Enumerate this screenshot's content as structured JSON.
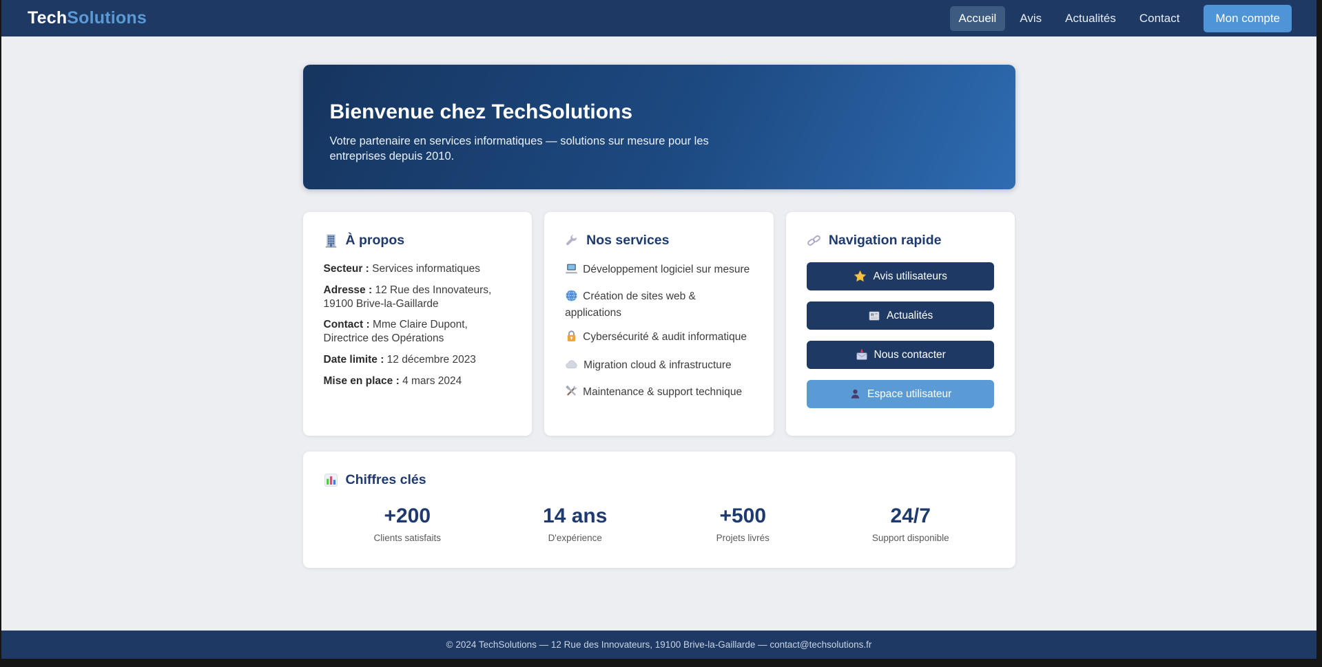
{
  "nav": {
    "brand": {
      "bold": "Tech",
      "accent": "Solutions"
    },
    "items": [
      {
        "label": "Accueil",
        "active": true
      },
      {
        "label": "Avis",
        "active": false
      },
      {
        "label": "Actualités",
        "active": false
      },
      {
        "label": "Contact",
        "active": false
      }
    ],
    "account_button": "Mon compte"
  },
  "hero": {
    "title": "Bienvenue chez TechSolutions",
    "subtitle": "Votre partenaire en services informatiques — solutions sur mesure pour les entreprises depuis 2010."
  },
  "about": {
    "icon": "building-icon",
    "title": "À propos",
    "rows": [
      {
        "label": "Secteur :",
        "value": "Services informatiques"
      },
      {
        "label": "Adresse :",
        "value": "12 Rue des Innovateurs, 19100 Brive-la-Gaillarde"
      },
      {
        "label": "Contact :",
        "value": "Mme Claire Dupont, Directrice des Opérations"
      },
      {
        "label": "Date limite :",
        "value": "12 décembre 2023"
      },
      {
        "label": "Mise en place :",
        "value": "4 mars 2024"
      }
    ]
  },
  "services": {
    "icon": "wrench-icon",
    "title": "Nos services",
    "items": [
      {
        "icon": "laptop-icon",
        "label": "Développement logiciel sur mesure"
      },
      {
        "icon": "globe-icon",
        "label": "Création de sites web & applications"
      },
      {
        "icon": "lock-icon",
        "label": "Cybersécurité & audit informatique"
      },
      {
        "icon": "cloud-icon",
        "label": "Migration cloud & infrastructure"
      },
      {
        "icon": "tools-icon",
        "label": "Maintenance & support technique"
      }
    ]
  },
  "quick_nav": {
    "icon": "link-icon",
    "title": "Navigation rapide",
    "buttons": [
      {
        "icon": "star-icon",
        "label": "Avis utilisateurs",
        "style": "dark"
      },
      {
        "icon": "newspaper-icon",
        "label": "Actualités",
        "style": "dark"
      },
      {
        "icon": "envelope-icon",
        "label": "Nous contacter",
        "style": "dark"
      },
      {
        "icon": "user-icon",
        "label": "Espace utilisateur",
        "style": "light"
      }
    ]
  },
  "stats": {
    "icon": "chart-icon",
    "title": "Chiffres clés",
    "items": [
      {
        "value": "+200",
        "label": "Clients satisfaits"
      },
      {
        "value": "14 ans",
        "label": "D'expérience"
      },
      {
        "value": "+500",
        "label": "Projets livrés"
      },
      {
        "value": "24/7",
        "label": "Support disponible"
      }
    ]
  },
  "footer": {
    "text": "© 2024 TechSolutions — 12 Rue des Innovateurs, 19100 Brive-la-Gaillarde — contact@techsolutions.fr"
  },
  "colors": {
    "navbar": "#1e3a64",
    "accent": "#5b9bd5",
    "nav_active_pill": "#3d5a80",
    "account_button": "#4f94d7",
    "hero_gradient_from": "#16355f",
    "hero_gradient_to": "#2e6cb2",
    "heading_text": "#1e3a6e",
    "quick_button_dark": "#1e3a64",
    "quick_button_light": "#5b9bd5",
    "page_background": "#edeef2",
    "footer": "#1e3a64"
  }
}
